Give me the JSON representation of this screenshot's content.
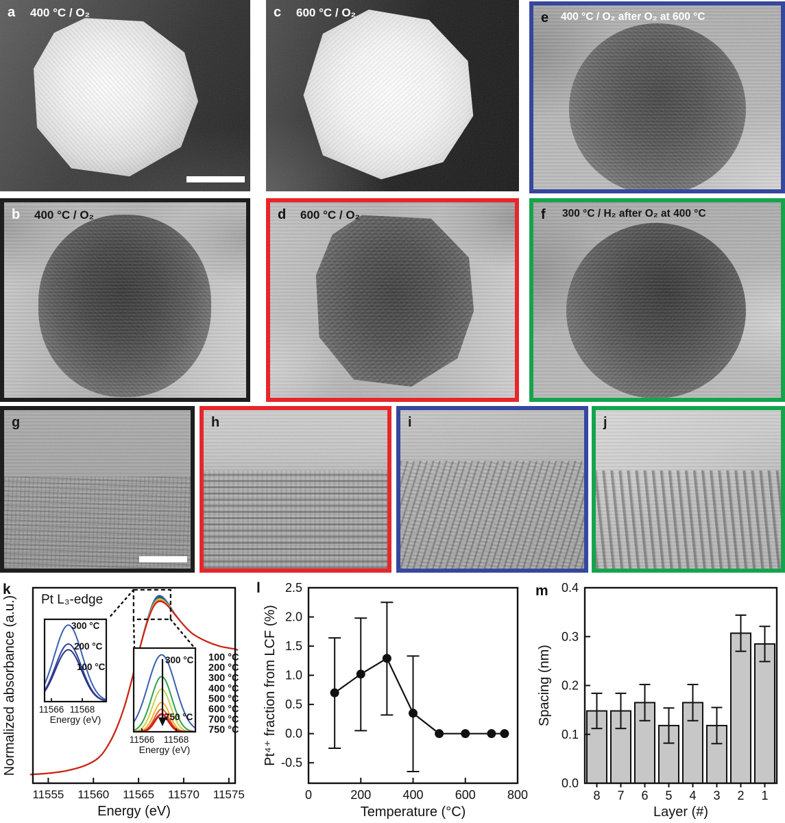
{
  "figure": {
    "background": "#ffffff",
    "tem_panels": [
      {
        "id": "a",
        "label": "a",
        "title": "400 °C / O₂",
        "label_color": "#ffffff",
        "title_color": "#ffffff",
        "scale_bar": true
      },
      {
        "id": "c",
        "label": "c",
        "title": "600 °C / O₂",
        "label_color": "#ffffff",
        "title_color": "#ffffff"
      },
      {
        "id": "e",
        "label": "e",
        "title": "400 °C / O₂ after O₂ at 600 °C",
        "label_color": "#111111",
        "title_color": "#ffffff",
        "border": "#36479e"
      },
      {
        "id": "b",
        "label": "b",
        "title": "400 °C / O₂",
        "label_color": "#ffffff",
        "title_color": "#161616",
        "border": "#1e1e1e"
      },
      {
        "id": "d",
        "label": "d",
        "title": "600 °C / O₂",
        "label_color": "#111111",
        "title_color": "#161616",
        "border": "#e7262a"
      },
      {
        "id": "f",
        "label": "f",
        "title": "300 °C / H₂ after O₂ at 400 °C",
        "label_color": "#111111",
        "title_color": "#161616",
        "border": "#15a44c"
      },
      {
        "id": "g",
        "label": "g",
        "label_color": "#1a1a1a",
        "border": "#1e1e1e",
        "scale_bar": true
      },
      {
        "id": "h",
        "label": "h",
        "label_color": "#1a1a1a",
        "border": "#e7262a"
      },
      {
        "id": "i",
        "label": "i",
        "label_color": "#1a1a1a",
        "border": "#36479e"
      },
      {
        "id": "j",
        "label": "j",
        "label_color": "#1a1a1a",
        "border": "#15a44c"
      }
    ]
  },
  "chart_data": [
    {
      "panel_label": "k",
      "type": "line",
      "title": "Pt L₃-edge",
      "xlabel": "Energy (eV)",
      "ylabel": "Normalized absorbance (a.u.)",
      "xlim": [
        11553.3,
        11575.7
      ],
      "xticks": [
        11555,
        11560,
        11565,
        11570,
        11575
      ],
      "ylim": [
        -0.05,
        1.52
      ],
      "grid": false,
      "peak_center": 11567.2,
      "base_curve": [
        [
          11553,
          0.02
        ],
        [
          11555,
          0.03
        ],
        [
          11557,
          0.05
        ],
        [
          11559,
          0.09
        ],
        [
          11560.5,
          0.15
        ],
        [
          11561.5,
          0.24
        ],
        [
          11562.5,
          0.38
        ],
        [
          11563.5,
          0.58
        ],
        [
          11564.5,
          0.85
        ],
        [
          11565.3,
          1.08
        ],
        [
          11566,
          1.26
        ],
        [
          11566.6,
          1.38
        ],
        [
          11567.1,
          1.43
        ],
        [
          11567.6,
          1.43
        ],
        [
          11568.2,
          1.39
        ],
        [
          11569,
          1.31
        ],
        [
          11570,
          1.22
        ],
        [
          11571,
          1.15
        ],
        [
          11572.5,
          1.09
        ],
        [
          11574,
          1.05
        ],
        [
          11575.5,
          1.03
        ],
        [
          11576,
          1.02
        ]
      ],
      "series": [
        {
          "name": "100 °C",
          "color": "#2a3580",
          "peak_delta": 0.005
        },
        {
          "name": "200 °C",
          "color": "#2c43a1",
          "peak_delta": 0.012
        },
        {
          "name": "300 °C",
          "color": "#3a5fb0",
          "peak_delta": 0.022
        },
        {
          "name": "400 °C",
          "color": "#2fa14f",
          "peak_delta": 0.0
        },
        {
          "name": "500 °C",
          "color": "#c6d348",
          "peak_delta": -0.007
        },
        {
          "name": "600 °C",
          "color": "#f4af2d",
          "peak_delta": -0.013
        },
        {
          "name": "700 °C",
          "color": "#e55f1d",
          "peak_delta": -0.019
        },
        {
          "name": "750 °C",
          "color": "#d01f1a",
          "peak_delta": -0.025
        }
      ],
      "legend_position": "right",
      "insets": [
        {
          "id": "low-temp-zoom",
          "xticks": [
            11566,
            11568
          ],
          "xlabel": "Energy (eV)",
          "center": 11567.1,
          "curves": [
            {
              "name": "300 °C",
              "color": "#3a5fb0",
              "height": 0.93,
              "sigma": 0.9
            },
            {
              "name": "200 °C",
              "color": "#2c43a1",
              "height": 0.7,
              "sigma": 0.85
            },
            {
              "name": "100 °C",
              "color": "#2a3580",
              "height": 0.63,
              "sigma": 0.85
            }
          ],
          "labels": [
            {
              "text": "300 °C",
              "color": "#3a5fb0"
            },
            {
              "text": "200 °C",
              "color": "#2c43a1"
            },
            {
              "text": "100 °C",
              "color": "#2a3580"
            }
          ]
        },
        {
          "id": "high-temp-zoom",
          "xticks": [
            11566,
            11568
          ],
          "xlabel": "Energy (eV)",
          "center": 11567.15,
          "curves": [
            {
              "name": "300 °C",
              "color": "#3a5fb0",
              "height": 0.92,
              "sigma": 0.8
            },
            {
              "name": "400 °C",
              "color": "#2fa14f",
              "height": 0.66,
              "sigma": 0.6
            },
            {
              "name": "500 °C",
              "color": "#c6d348",
              "height": 0.51,
              "sigma": 0.52
            },
            {
              "name": "600 °C",
              "color": "#f4af2d",
              "height": 0.35,
              "sigma": 0.46
            },
            {
              "name": "700 °C",
              "color": "#e55f1d",
              "height": 0.27,
              "sigma": 0.42
            },
            {
              "name": "750 °C",
              "color": "#d01f1a",
              "height": 0.21,
              "sigma": 0.4
            }
          ],
          "labels": [
            {
              "text": "300 °C",
              "color": "#3a5fb0"
            },
            {
              "text": "750 °C",
              "color": "#d01f1a"
            }
          ],
          "arrow": "down"
        }
      ]
    },
    {
      "panel_label": "l",
      "type": "scatter-line",
      "xlabel": "Temperature (°C)",
      "ylabel": "Pt⁴⁺ fraction from LCF (%)",
      "xlim": [
        0,
        800
      ],
      "xticks": [
        0,
        200,
        400,
        600,
        800
      ],
      "ylim": [
        -0.85,
        2.5
      ],
      "yticks": [
        "-0.5",
        "0.0",
        "0.5",
        "1.0",
        "1.5",
        "2.0",
        "2.5"
      ],
      "x": [
        100,
        200,
        300,
        400,
        500,
        600,
        700,
        750
      ],
      "y": [
        0.7,
        1.02,
        1.29,
        0.35,
        0.0,
        0.0,
        0.0,
        0.0
      ],
      "err_hi": [
        0.94,
        0.96,
        0.96,
        0.98,
        0,
        0,
        0,
        0
      ],
      "err_lo": [
        0.95,
        0.97,
        0.97,
        1.0,
        0,
        0,
        0,
        0
      ],
      "marker_color": "#111111"
    },
    {
      "panel_label": "m",
      "type": "bar",
      "xlabel": "Layer (#)",
      "ylabel": "Spacing (nm)",
      "categories": [
        "8",
        "7",
        "6",
        "5",
        "4",
        "3",
        "2",
        "1"
      ],
      "values": [
        0.148,
        0.148,
        0.165,
        0.118,
        0.165,
        0.118,
        0.307,
        0.285
      ],
      "errors": [
        0.036,
        0.036,
        0.037,
        0.036,
        0.037,
        0.037,
        0.037,
        0.036
      ],
      "ylim": [
        0,
        0.4
      ],
      "yticks": [
        "0.0",
        "0.1",
        "0.2",
        "0.3",
        "0.4"
      ],
      "bar_fill": "#c7c7c7",
      "bar_stroke": "#111111"
    }
  ]
}
